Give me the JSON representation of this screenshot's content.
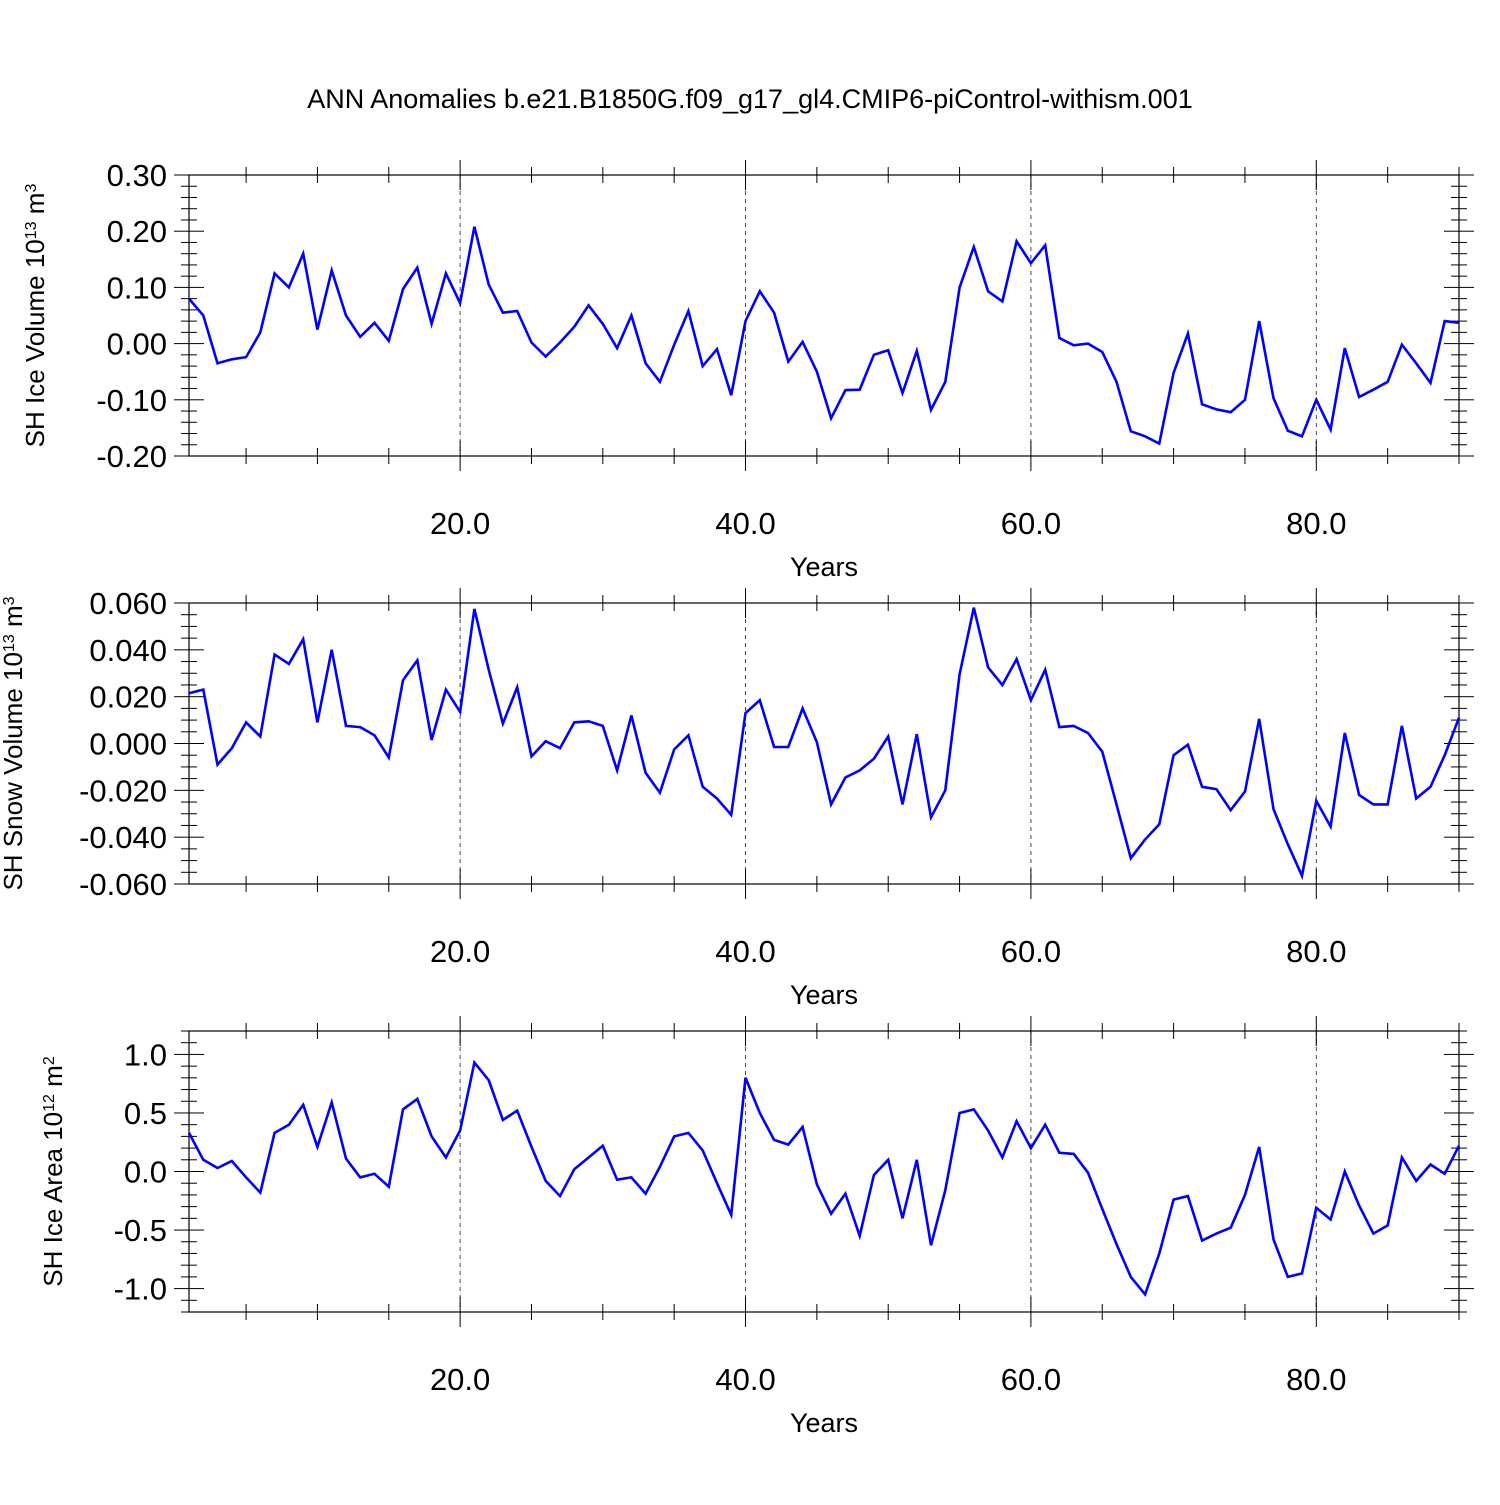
{
  "figure_title": "ANN Anomalies b.e21.B1850G.f09_g17_gl4.CMIP6-piControl-withism.001",
  "line_color": "#0000ff",
  "chart_data": [
    {
      "type": "line",
      "title": "",
      "xlabel": "Years",
      "ylabel_main": "SH Ice Volume 10",
      "ylabel_exp": "13",
      "ylabel_unit": " m",
      "ylabel_unit_exp": "3",
      "xlim": [
        1,
        90
      ],
      "ylim": [
        -0.2,
        0.3
      ],
      "x_ticks": [
        20,
        40,
        60,
        80
      ],
      "x_tick_labels": [
        "20.0",
        "40.0",
        "60.0",
        "80.0"
      ],
      "y_ticks": [
        -0.2,
        -0.1,
        0.0,
        0.1,
        0.2,
        0.3
      ],
      "y_tick_labels": [
        "-0.20",
        "-0.10",
        "0.00",
        "0.10",
        "0.20",
        "0.30"
      ],
      "y_minor_step": 0.02,
      "grid": "vertical dashed at major x ticks",
      "series": [
        {
          "x_start": 1,
          "values": [
            0.08,
            0.05,
            -0.035,
            -0.028,
            -0.024,
            0.02,
            0.125,
            0.1,
            0.16,
            0.025,
            0.13,
            0.05,
            0.012,
            0.037,
            0.005,
            0.097,
            0.135,
            0.035,
            0.125,
            0.072,
            0.208,
            0.105,
            0.055,
            0.058,
            0.002,
            -0.023,
            0.002,
            0.03,
            0.068,
            0.035,
            -0.008,
            0.05,
            -0.035,
            -0.068,
            -0.002,
            0.058,
            -0.04,
            -0.01,
            -0.092,
            0.04,
            0.093,
            0.055,
            -0.032,
            0.003,
            -0.05,
            -0.133,
            -0.083,
            -0.082,
            -0.02,
            -0.012,
            -0.088,
            -0.013,
            -0.118,
            -0.068,
            0.1,
            0.172,
            0.093,
            0.075,
            0.182,
            0.143,
            0.175,
            0.01,
            -0.003,
            0.0,
            -0.015,
            -0.068,
            -0.156,
            -0.165,
            -0.178,
            -0.052,
            0.018,
            -0.108,
            -0.117,
            -0.122,
            -0.1,
            0.04,
            -0.097,
            -0.155,
            -0.165,
            -0.1,
            -0.153,
            -0.008,
            -0.095,
            -0.082,
            -0.068,
            -0.002,
            -0.035,
            -0.07,
            0.04,
            0.037
          ]
        }
      ]
    },
    {
      "type": "line",
      "title": "",
      "xlabel": "Years",
      "ylabel_main": "SH Snow Volume 10",
      "ylabel_exp": "13",
      "ylabel_unit": " m",
      "ylabel_unit_exp": "3",
      "xlim": [
        1,
        90
      ],
      "ylim": [
        -0.06,
        0.06
      ],
      "x_ticks": [
        20,
        40,
        60,
        80
      ],
      "x_tick_labels": [
        "20.0",
        "40.0",
        "60.0",
        "80.0"
      ],
      "y_ticks": [
        -0.06,
        -0.04,
        -0.02,
        0.0,
        0.02,
        0.04,
        0.06
      ],
      "y_tick_labels": [
        "-0.060",
        "-0.040",
        "-0.020",
        "0.000",
        "0.020",
        "0.040",
        "0.060"
      ],
      "y_minor_step": 0.005,
      "grid": "vertical dashed at major x ticks",
      "series": [
        {
          "x_start": 1,
          "values": [
            0.0215,
            0.023,
            -0.009,
            -0.002,
            0.009,
            0.003,
            0.038,
            0.034,
            0.0445,
            0.009,
            0.04,
            0.0075,
            0.007,
            0.0035,
            -0.006,
            0.027,
            0.0355,
            0.0015,
            0.023,
            0.0135,
            0.0575,
            0.0315,
            0.0085,
            0.024,
            -0.0055,
            0.001,
            -0.002,
            0.009,
            0.0095,
            0.0075,
            -0.0115,
            0.012,
            -0.0125,
            -0.021,
            -0.0025,
            0.0035,
            -0.0185,
            -0.0235,
            -0.0305,
            0.013,
            0.0185,
            -0.0015,
            -0.0015,
            0.015,
            0.0005,
            -0.026,
            -0.0145,
            -0.0115,
            -0.0065,
            0.003,
            -0.026,
            0.004,
            -0.0315,
            -0.02,
            0.0295,
            0.058,
            0.0325,
            0.025,
            0.036,
            0.0185,
            0.0315,
            0.007,
            0.0075,
            0.0045,
            -0.0035,
            -0.026,
            -0.049,
            -0.041,
            -0.0345,
            -0.005,
            -0.0005,
            -0.0185,
            -0.0195,
            -0.0285,
            -0.0205,
            0.0105,
            -0.028,
            -0.043,
            -0.0565,
            -0.0245,
            -0.0355,
            0.0045,
            -0.022,
            -0.026,
            -0.026,
            0.0075,
            -0.0235,
            -0.0185,
            -0.005,
            0.011
          ]
        }
      ]
    },
    {
      "type": "line",
      "title": "",
      "xlabel": "Years",
      "ylabel_main": "SH Ice Area 10",
      "ylabel_exp": "12",
      "ylabel_unit": " m",
      "ylabel_unit_exp": "2",
      "xlim": [
        1,
        90
      ],
      "ylim": [
        -1.2,
        1.2
      ],
      "x_ticks": [
        20,
        40,
        60,
        80
      ],
      "x_tick_labels": [
        "20.0",
        "40.0",
        "60.0",
        "80.0"
      ],
      "y_ticks": [
        -1.0,
        -0.5,
        0.0,
        0.5,
        1.0
      ],
      "y_tick_labels": [
        "-1.0",
        "-0.5",
        "0.0",
        "0.5",
        "1.0"
      ],
      "y_minor_step": 0.1,
      "grid": "vertical dashed at major x ticks",
      "series": [
        {
          "x_start": 1,
          "values": [
            0.33,
            0.1,
            0.03,
            0.09,
            -0.05,
            -0.18,
            0.33,
            0.4,
            0.57,
            0.21,
            0.59,
            0.11,
            -0.05,
            -0.02,
            -0.13,
            0.53,
            0.62,
            0.3,
            0.12,
            0.35,
            0.93,
            0.78,
            0.44,
            0.52,
            0.21,
            -0.08,
            -0.21,
            0.02,
            0.12,
            0.22,
            -0.07,
            -0.05,
            -0.19,
            0.04,
            0.3,
            0.33,
            0.18,
            -0.1,
            -0.37,
            0.8,
            0.5,
            0.27,
            0.23,
            0.38,
            -0.11,
            -0.36,
            -0.19,
            -0.55,
            -0.03,
            0.1,
            -0.4,
            0.1,
            -0.63,
            -0.16,
            0.5,
            0.53,
            0.35,
            0.12,
            0.43,
            0.2,
            0.4,
            0.16,
            0.15,
            -0.01,
            -0.32,
            -0.62,
            -0.9,
            -1.05,
            -0.7,
            -0.24,
            -0.21,
            -0.59,
            -0.53,
            -0.48,
            -0.2,
            0.21,
            -0.58,
            -0.9,
            -0.87,
            -0.31,
            -0.41,
            0.0,
            -0.29,
            -0.53,
            -0.46,
            0.12,
            -0.08,
            0.06,
            -0.02,
            0.22
          ]
        }
      ]
    }
  ]
}
